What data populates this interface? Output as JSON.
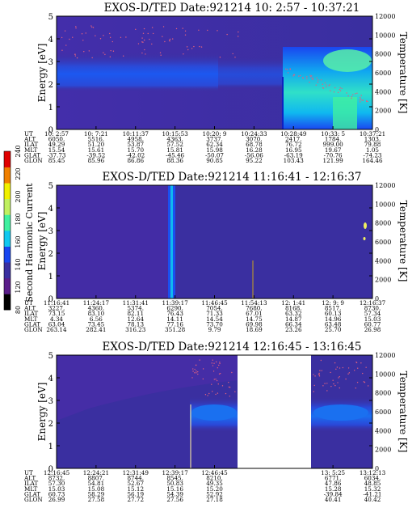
{
  "colors": {
    "background_plasma": "#3a2fa0",
    "low_noise": "#5030a8",
    "mid_blue": "#1846f0",
    "cyan": "#10c8f0",
    "green": "#40f0a0",
    "yellow_green": "#c0f060",
    "dots": "#e06080"
  },
  "colorbar": {
    "title": "Second Harmonic Current",
    "ticks": [
      "80",
      "120",
      "140",
      "160",
      "180",
      "200",
      "220",
      "240"
    ],
    "colors": [
      "#000000",
      "#5a1d8a",
      "#3a2fa0",
      "#1846f0",
      "#10c8f0",
      "#40f0a0",
      "#c0f060",
      "#f0f000",
      "#f08000",
      "#e00000"
    ]
  },
  "chart_data": [
    {
      "type": "heatmap",
      "title": "EXOS-D/TED   Date:921214   10: 2:57 - 10:37:21",
      "ylabel": "Energy [eV]",
      "y2label": "Temperature [K]",
      "ylim": [
        0,
        5
      ],
      "y2lim": [
        0,
        12000
      ],
      "yticks": [
        "0",
        "1",
        "2",
        "3",
        "4",
        "5"
      ],
      "y2ticks": [
        "0",
        "2000",
        "4000",
        "6000",
        "8000",
        "10000",
        "12000"
      ],
      "table": {
        "labels": [
          "UT",
          "ALT",
          "ILAT",
          "MLT",
          "GLAT",
          "GLON"
        ],
        "columns": [
          [
            "10: 2:57",
            "6050.",
            "49.29",
            "15.54",
            "-37.73",
            "85.45"
          ],
          [
            "10: 7:21",
            "5516.",
            "51.20",
            "15.61",
            "-39.52",
            "85.96"
          ],
          [
            "10:11:37",
            "4958.",
            "53.87",
            "15.70",
            "-42.02",
            "86.86"
          ],
          [
            "10:15:53",
            "4363.",
            "57.52",
            "15.81",
            "-45.46",
            "88.36"
          ],
          [
            "10:20: 9",
            "3737.",
            "62.34",
            "15.98",
            "-50.07",
            "90.85"
          ],
          [
            "10:24:33",
            "3070.",
            "68.78",
            "16.28",
            "-56.06",
            "95.22"
          ],
          [
            "10:28:49",
            "2417.",
            "76.72",
            "16.95",
            "-63.19",
            "103.43"
          ],
          [
            "10:33: 5",
            "1784.",
            "999.00",
            "19.67",
            "-70.76",
            "121.99"
          ],
          [
            "10:37:21",
            "1303.",
            "79.88",
            "1.05",
            "-74.23",
            "164.46"
          ]
        ]
      }
    },
    {
      "type": "heatmap",
      "title": "EXOS-D/TED   Date:921214   11:16:41 - 12:16:37",
      "ylabel": "Energy [eV]",
      "y2label": "Temperature [K]",
      "ylim": [
        0,
        5
      ],
      "y2lim": [
        0,
        12000
      ],
      "yticks": [
        "0",
        "1",
        "2",
        "3",
        "4",
        "5"
      ],
      "y2ticks": [
        "0",
        "2000",
        "4000",
        "6000",
        "8000",
        "10000",
        "12000"
      ],
      "table": {
        "labels": [
          "UT",
          "ALT",
          "ILAT",
          "MLT",
          "GLAT",
          "GLON"
        ],
        "columns": [
          [
            "11:16:41",
            "3227.",
            "73.15",
            "4.34",
            "63.04",
            "263.14"
          ],
          [
            "11:24:17",
            "4360.",
            "83.10",
            "6.56",
            "73.45",
            "282.41"
          ],
          [
            "11:31:41",
            "5374.",
            "82.11",
            "12.64",
            "78.13",
            "316.23"
          ],
          [
            "11:39:17",
            "6290.",
            "76.43",
            "14.11",
            "77.16",
            "351.28"
          ],
          [
            "11:46:45",
            "7054.",
            "71.33",
            "14.54",
            "73.70",
            "9.79"
          ],
          [
            "11:54:13",
            "7680.",
            "67.01",
            "14.75",
            "69.98",
            "18.69"
          ],
          [
            "12: 1:41",
            "8168.",
            "63.32",
            "14.87",
            "66.34",
            "23.26"
          ],
          [
            "12: 9: 9",
            "8517.",
            "60.13",
            "14.96",
            "63.48",
            "25.70"
          ],
          [
            "12:16:37",
            "8730.",
            "57.34",
            "15.03",
            "60.77",
            "26.98"
          ]
        ]
      }
    },
    {
      "type": "heatmap",
      "title": "EXOS-D/TED   Date:921214   12:16:45 - 13:16:45",
      "ylabel": "Energy [eV]",
      "y2label": "Temperature [K]",
      "ylim": [
        0,
        5
      ],
      "y2lim": [
        0,
        12000
      ],
      "yticks": [
        "0",
        "1",
        "2",
        "3",
        "4",
        "5"
      ],
      "y2ticks": [
        "0",
        "2000",
        "4000",
        "6000",
        "8000",
        "10000",
        "12000"
      ],
      "table": {
        "labels": [
          "UT",
          "ALT",
          "ILAT",
          "MLT",
          "GLAT",
          "GLON"
        ],
        "columns": [
          [
            "12:16:45",
            "8732.",
            "57.30",
            "15.03",
            "60.73",
            "26.99"
          ],
          [
            "12:24:21",
            "8807.",
            "54.81",
            "15.08",
            "58.29",
            "27.58"
          ],
          [
            "12:31:49",
            "8744.",
            "52.67",
            "15.12",
            "56.19",
            "27.72"
          ],
          [
            "12:39:17",
            "8545.",
            "50.83",
            "15.16",
            "54.39",
            "27.56"
          ],
          [
            "12:46:45",
            "8210.",
            "49.35",
            "15.20",
            "52.92",
            "27.18"
          ],
          [
            "",
            "",
            "",
            "",
            "",
            ""
          ],
          [
            "",
            "",
            "",
            "",
            "",
            ""
          ],
          [
            "13: 5:25",
            "6771.",
            "47.86",
            "15.28",
            "-39.84",
            "40.41"
          ],
          [
            "13:12:13",
            "6034.",
            "48.85",
            "15.32",
            "-41.21",
            "40.42"
          ]
        ]
      }
    }
  ]
}
